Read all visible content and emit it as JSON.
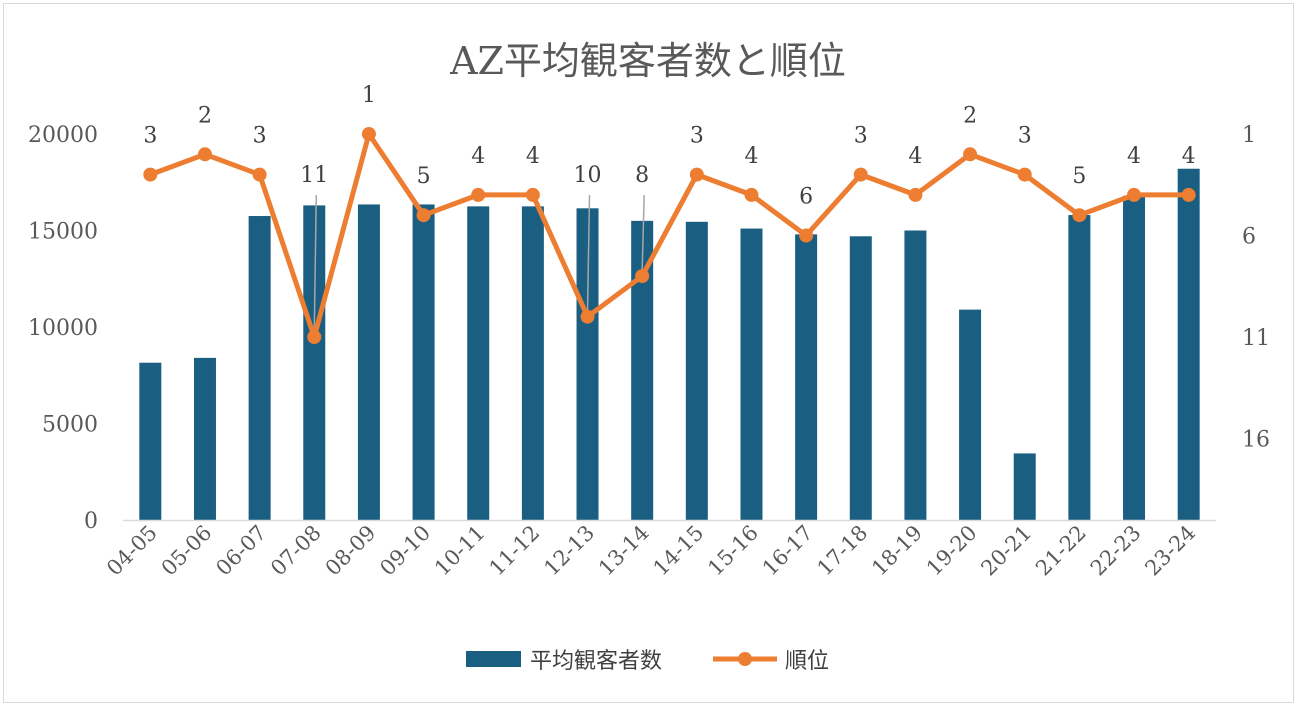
{
  "chart_data": {
    "type": "bar",
    "title": "AZ平均観客者数と順位",
    "categories": [
      "04-05",
      "05-06",
      "06-07",
      "07-08",
      "08-09",
      "09-10",
      "10-11",
      "11-12",
      "12-13",
      "13-14",
      "14-15",
      "15-16",
      "16-17",
      "17-18",
      "18-19",
      "19-20",
      "20-21",
      "21-22",
      "22-23",
      "23-24"
    ],
    "series": [
      {
        "name": "平均観客者数",
        "type": "bar",
        "axis": "left",
        "color": "#1a5e82",
        "values": [
          8150,
          8400,
          15750,
          16300,
          16350,
          16350,
          16250,
          16250,
          16150,
          15500,
          15450,
          15100,
          14800,
          14700,
          15000,
          10900,
          3450,
          15800,
          16800,
          18200
        ]
      },
      {
        "name": "順位",
        "type": "line",
        "axis": "right",
        "color": "#ed7d31",
        "values": [
          3,
          2,
          3,
          11,
          1,
          5,
          4,
          4,
          10,
          8,
          3,
          4,
          6,
          3,
          4,
          2,
          3,
          5,
          4,
          4
        ]
      }
    ],
    "y_left": {
      "min": 0,
      "max": 20000,
      "ticks": [
        0,
        5000,
        10000,
        15000,
        20000
      ]
    },
    "y_right": {
      "min": 1,
      "max": 20,
      "reversed": true,
      "ticks": [
        1,
        6,
        11,
        16
      ]
    },
    "grid": false,
    "legend": "bottom"
  }
}
